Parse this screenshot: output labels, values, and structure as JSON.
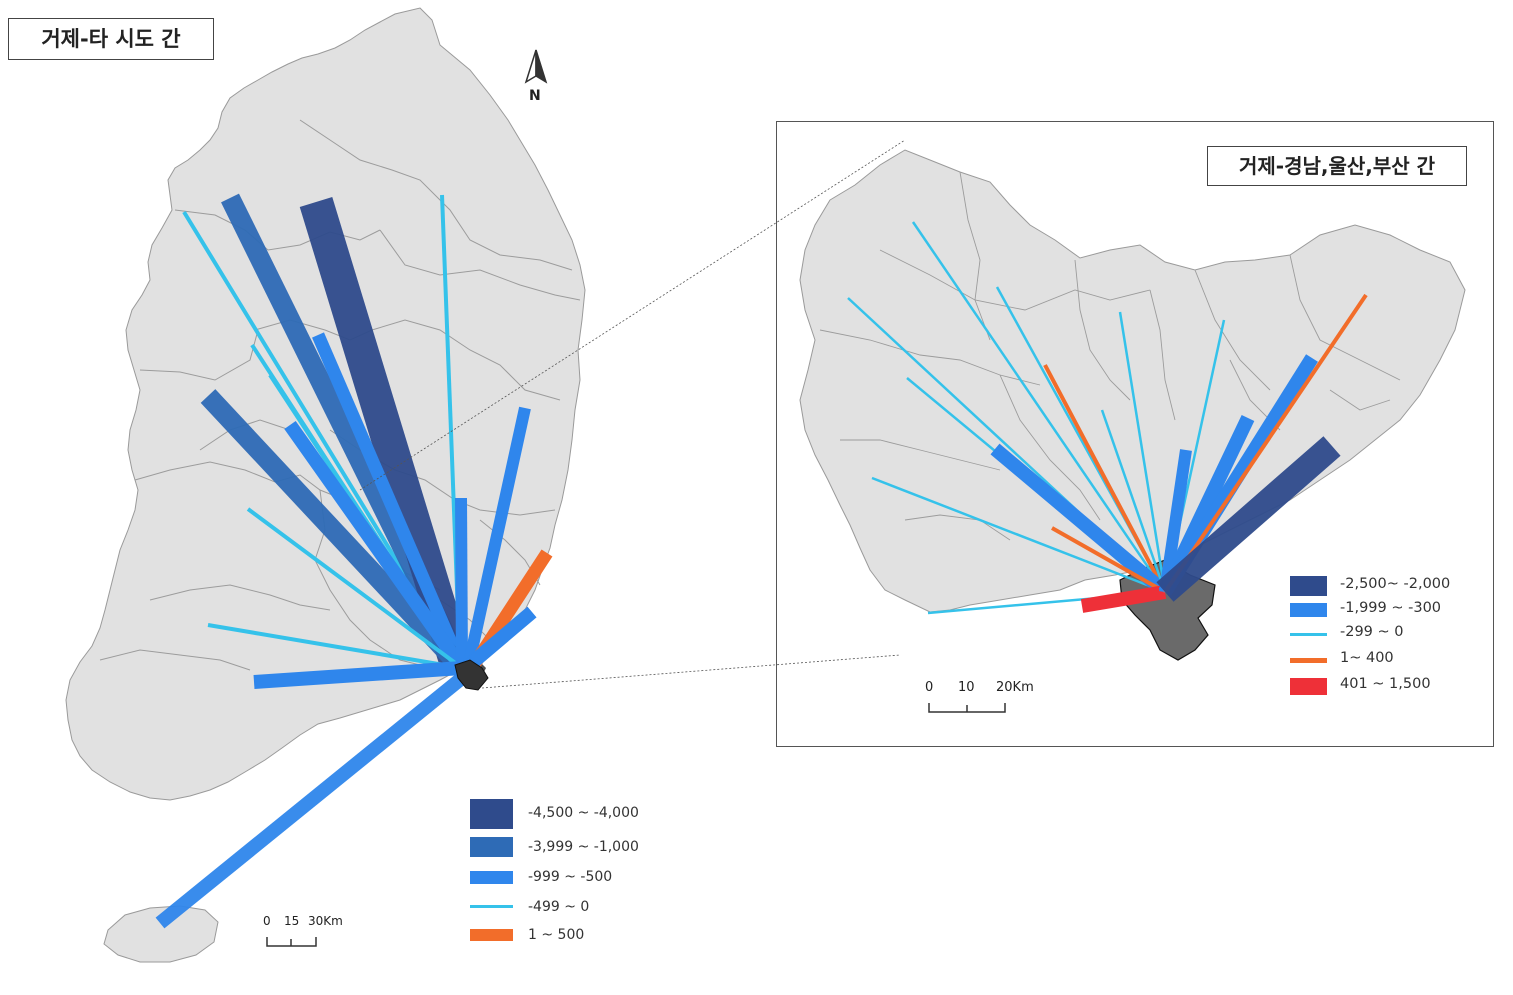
{
  "main_map": {
    "title": "거제-타 시도 간",
    "north_label": "N",
    "scale_labels": [
      "0",
      "15",
      "30Km"
    ],
    "legend": [
      {
        "label": "-4,500 ~ -4,000",
        "color": "#2f4b8c",
        "symbol": "box"
      },
      {
        "label": "-3,999 ~ -1,000",
        "color": "#2e6bb6",
        "symbol": "box"
      },
      {
        "label": "-999 ~ -500",
        "color": "#2f86ec",
        "symbol": "bar"
      },
      {
        "label": "-499 ~ 0",
        "color": "#35c2ea",
        "symbol": "line"
      },
      {
        "label": "1 ~ 500",
        "color": "#f26d2a",
        "symbol": "bar"
      }
    ],
    "flows": [
      {
        "to": "far-north-west-line",
        "class": 3
      },
      {
        "to": "north-west-dark",
        "class": 1
      },
      {
        "to": "north-darkest",
        "class": 0
      },
      {
        "to": "north-line",
        "class": 3
      },
      {
        "to": "central-north-blue",
        "class": 2
      },
      {
        "to": "west-dark",
        "class": 1
      },
      {
        "to": "central-line-a",
        "class": 3
      },
      {
        "to": "central-blue-b",
        "class": 2
      },
      {
        "to": "west-line",
        "class": 3
      },
      {
        "to": "south-west-line",
        "class": 3
      },
      {
        "to": "south-west-blue",
        "class": 2
      },
      {
        "to": "jeju-blue",
        "class": 2
      },
      {
        "to": "east-blue-a",
        "class": 2
      },
      {
        "to": "east-blue-b",
        "class": 2
      },
      {
        "to": "south-east-orange",
        "class": 4
      },
      {
        "to": "south-east-blue",
        "class": 2
      }
    ]
  },
  "inset_map": {
    "title": "거제-경남,울산,부산 간",
    "scale_labels": [
      "0",
      "10",
      "20Km"
    ],
    "legend": [
      {
        "label": "-2,500~ -2,000",
        "color": "#2f4b8c",
        "symbol": "box"
      },
      {
        "label": "-1,999 ~ -300",
        "color": "#2f86ec",
        "symbol": "box"
      },
      {
        "label": "-299 ~ 0",
        "color": "#35c2ea",
        "symbol": "line"
      },
      {
        "label": "1~ 400",
        "color": "#f26d2a",
        "symbol": "bar"
      },
      {
        "label": "401 ~ 1,500",
        "color": "#ee3038",
        "symbol": "box"
      }
    ]
  }
}
